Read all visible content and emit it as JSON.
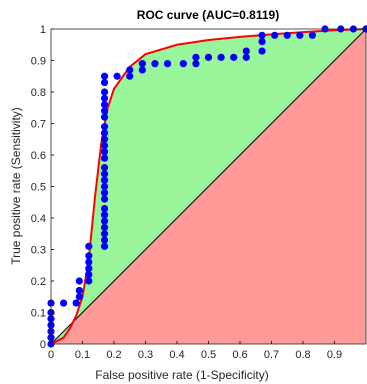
{
  "chart_data": {
    "type": "scatter",
    "title": "ROC curve (AUC=0.8119)",
    "xlabel": "False positive rate (1-Specificity)",
    "ylabel": "True positive rate (Sensitivity)",
    "xlim": [
      0,
      1
    ],
    "ylim": [
      0,
      1
    ],
    "xticks": [
      "0",
      "0.1",
      "0.2",
      "0.3",
      "0.4",
      "0.5",
      "0.6",
      "0.7",
      "0.8",
      "0.9"
    ],
    "xtick_values": [
      0,
      0.1,
      0.2,
      0.3,
      0.4,
      0.5,
      0.6,
      0.7,
      0.8,
      0.9
    ],
    "yticks": [
      "0",
      "0.1",
      "0.2",
      "0.3",
      "0.4",
      "0.5",
      "0.6",
      "0.7",
      "0.8",
      "0.9",
      "1"
    ],
    "ytick_values": [
      0,
      0.1,
      0.2,
      0.3,
      0.4,
      0.5,
      0.6,
      0.7,
      0.8,
      0.9,
      1
    ],
    "grid": false,
    "colors": {
      "points": "#0000ff",
      "fit_curve": "#ff0000",
      "area_above_chance": "#99f599",
      "area_below_chance": "#ff9a96",
      "chance_line": "#000000"
    },
    "empirical_points": [
      [
        0,
        0
      ],
      [
        0,
        0.02
      ],
      [
        0,
        0.04
      ],
      [
        0,
        0.06
      ],
      [
        0,
        0.08
      ],
      [
        0,
        0.1
      ],
      [
        0,
        0.13
      ],
      [
        0.04,
        0.13
      ],
      [
        0.08,
        0.13
      ],
      [
        0.09,
        0.15
      ],
      [
        0.09,
        0.17
      ],
      [
        0.09,
        0.2
      ],
      [
        0.12,
        0.2
      ],
      [
        0.12,
        0.22
      ],
      [
        0.12,
        0.24
      ],
      [
        0.12,
        0.26
      ],
      [
        0.12,
        0.28
      ],
      [
        0.12,
        0.31
      ],
      [
        0.17,
        0.31
      ],
      [
        0.17,
        0.33
      ],
      [
        0.17,
        0.35
      ],
      [
        0.17,
        0.37
      ],
      [
        0.17,
        0.39
      ],
      [
        0.17,
        0.41
      ],
      [
        0.17,
        0.43
      ],
      [
        0.17,
        0.46
      ],
      [
        0.17,
        0.48
      ],
      [
        0.17,
        0.5
      ],
      [
        0.17,
        0.52
      ],
      [
        0.17,
        0.54
      ],
      [
        0.17,
        0.56
      ],
      [
        0.17,
        0.59
      ],
      [
        0.17,
        0.61
      ],
      [
        0.17,
        0.63
      ],
      [
        0.17,
        0.65
      ],
      [
        0.17,
        0.67
      ],
      [
        0.17,
        0.69
      ],
      [
        0.17,
        0.72
      ],
      [
        0.17,
        0.74
      ],
      [
        0.17,
        0.76
      ],
      [
        0.17,
        0.78
      ],
      [
        0.17,
        0.8
      ],
      [
        0.17,
        0.83
      ],
      [
        0.17,
        0.85
      ],
      [
        0.21,
        0.85
      ],
      [
        0.25,
        0.85
      ],
      [
        0.25,
        0.87
      ],
      [
        0.29,
        0.87
      ],
      [
        0.29,
        0.89
      ],
      [
        0.33,
        0.89
      ],
      [
        0.37,
        0.89
      ],
      [
        0.42,
        0.89
      ],
      [
        0.46,
        0.89
      ],
      [
        0.46,
        0.91
      ],
      [
        0.5,
        0.91
      ],
      [
        0.54,
        0.91
      ],
      [
        0.58,
        0.91
      ],
      [
        0.62,
        0.91
      ],
      [
        0.62,
        0.93
      ],
      [
        0.67,
        0.93
      ],
      [
        0.67,
        0.96
      ],
      [
        0.67,
        0.98
      ],
      [
        0.71,
        0.98
      ],
      [
        0.75,
        0.98
      ],
      [
        0.79,
        0.98
      ],
      [
        0.83,
        0.98
      ],
      [
        0.87,
        1
      ],
      [
        0.92,
        1
      ],
      [
        0.96,
        1
      ],
      [
        1,
        1
      ]
    ],
    "fitted_curve": [
      [
        0,
        0
      ],
      [
        0.02,
        0.01
      ],
      [
        0.04,
        0.02
      ],
      [
        0.06,
        0.05
      ],
      [
        0.08,
        0.09
      ],
      [
        0.1,
        0.15
      ],
      [
        0.12,
        0.27
      ],
      [
        0.14,
        0.47
      ],
      [
        0.16,
        0.64
      ],
      [
        0.18,
        0.75
      ],
      [
        0.2,
        0.81
      ],
      [
        0.25,
        0.88
      ],
      [
        0.3,
        0.92
      ],
      [
        0.4,
        0.95
      ],
      [
        0.5,
        0.965
      ],
      [
        0.6,
        0.975
      ],
      [
        0.7,
        0.983
      ],
      [
        0.8,
        0.99
      ],
      [
        0.9,
        0.996
      ],
      [
        1,
        1
      ]
    ]
  }
}
